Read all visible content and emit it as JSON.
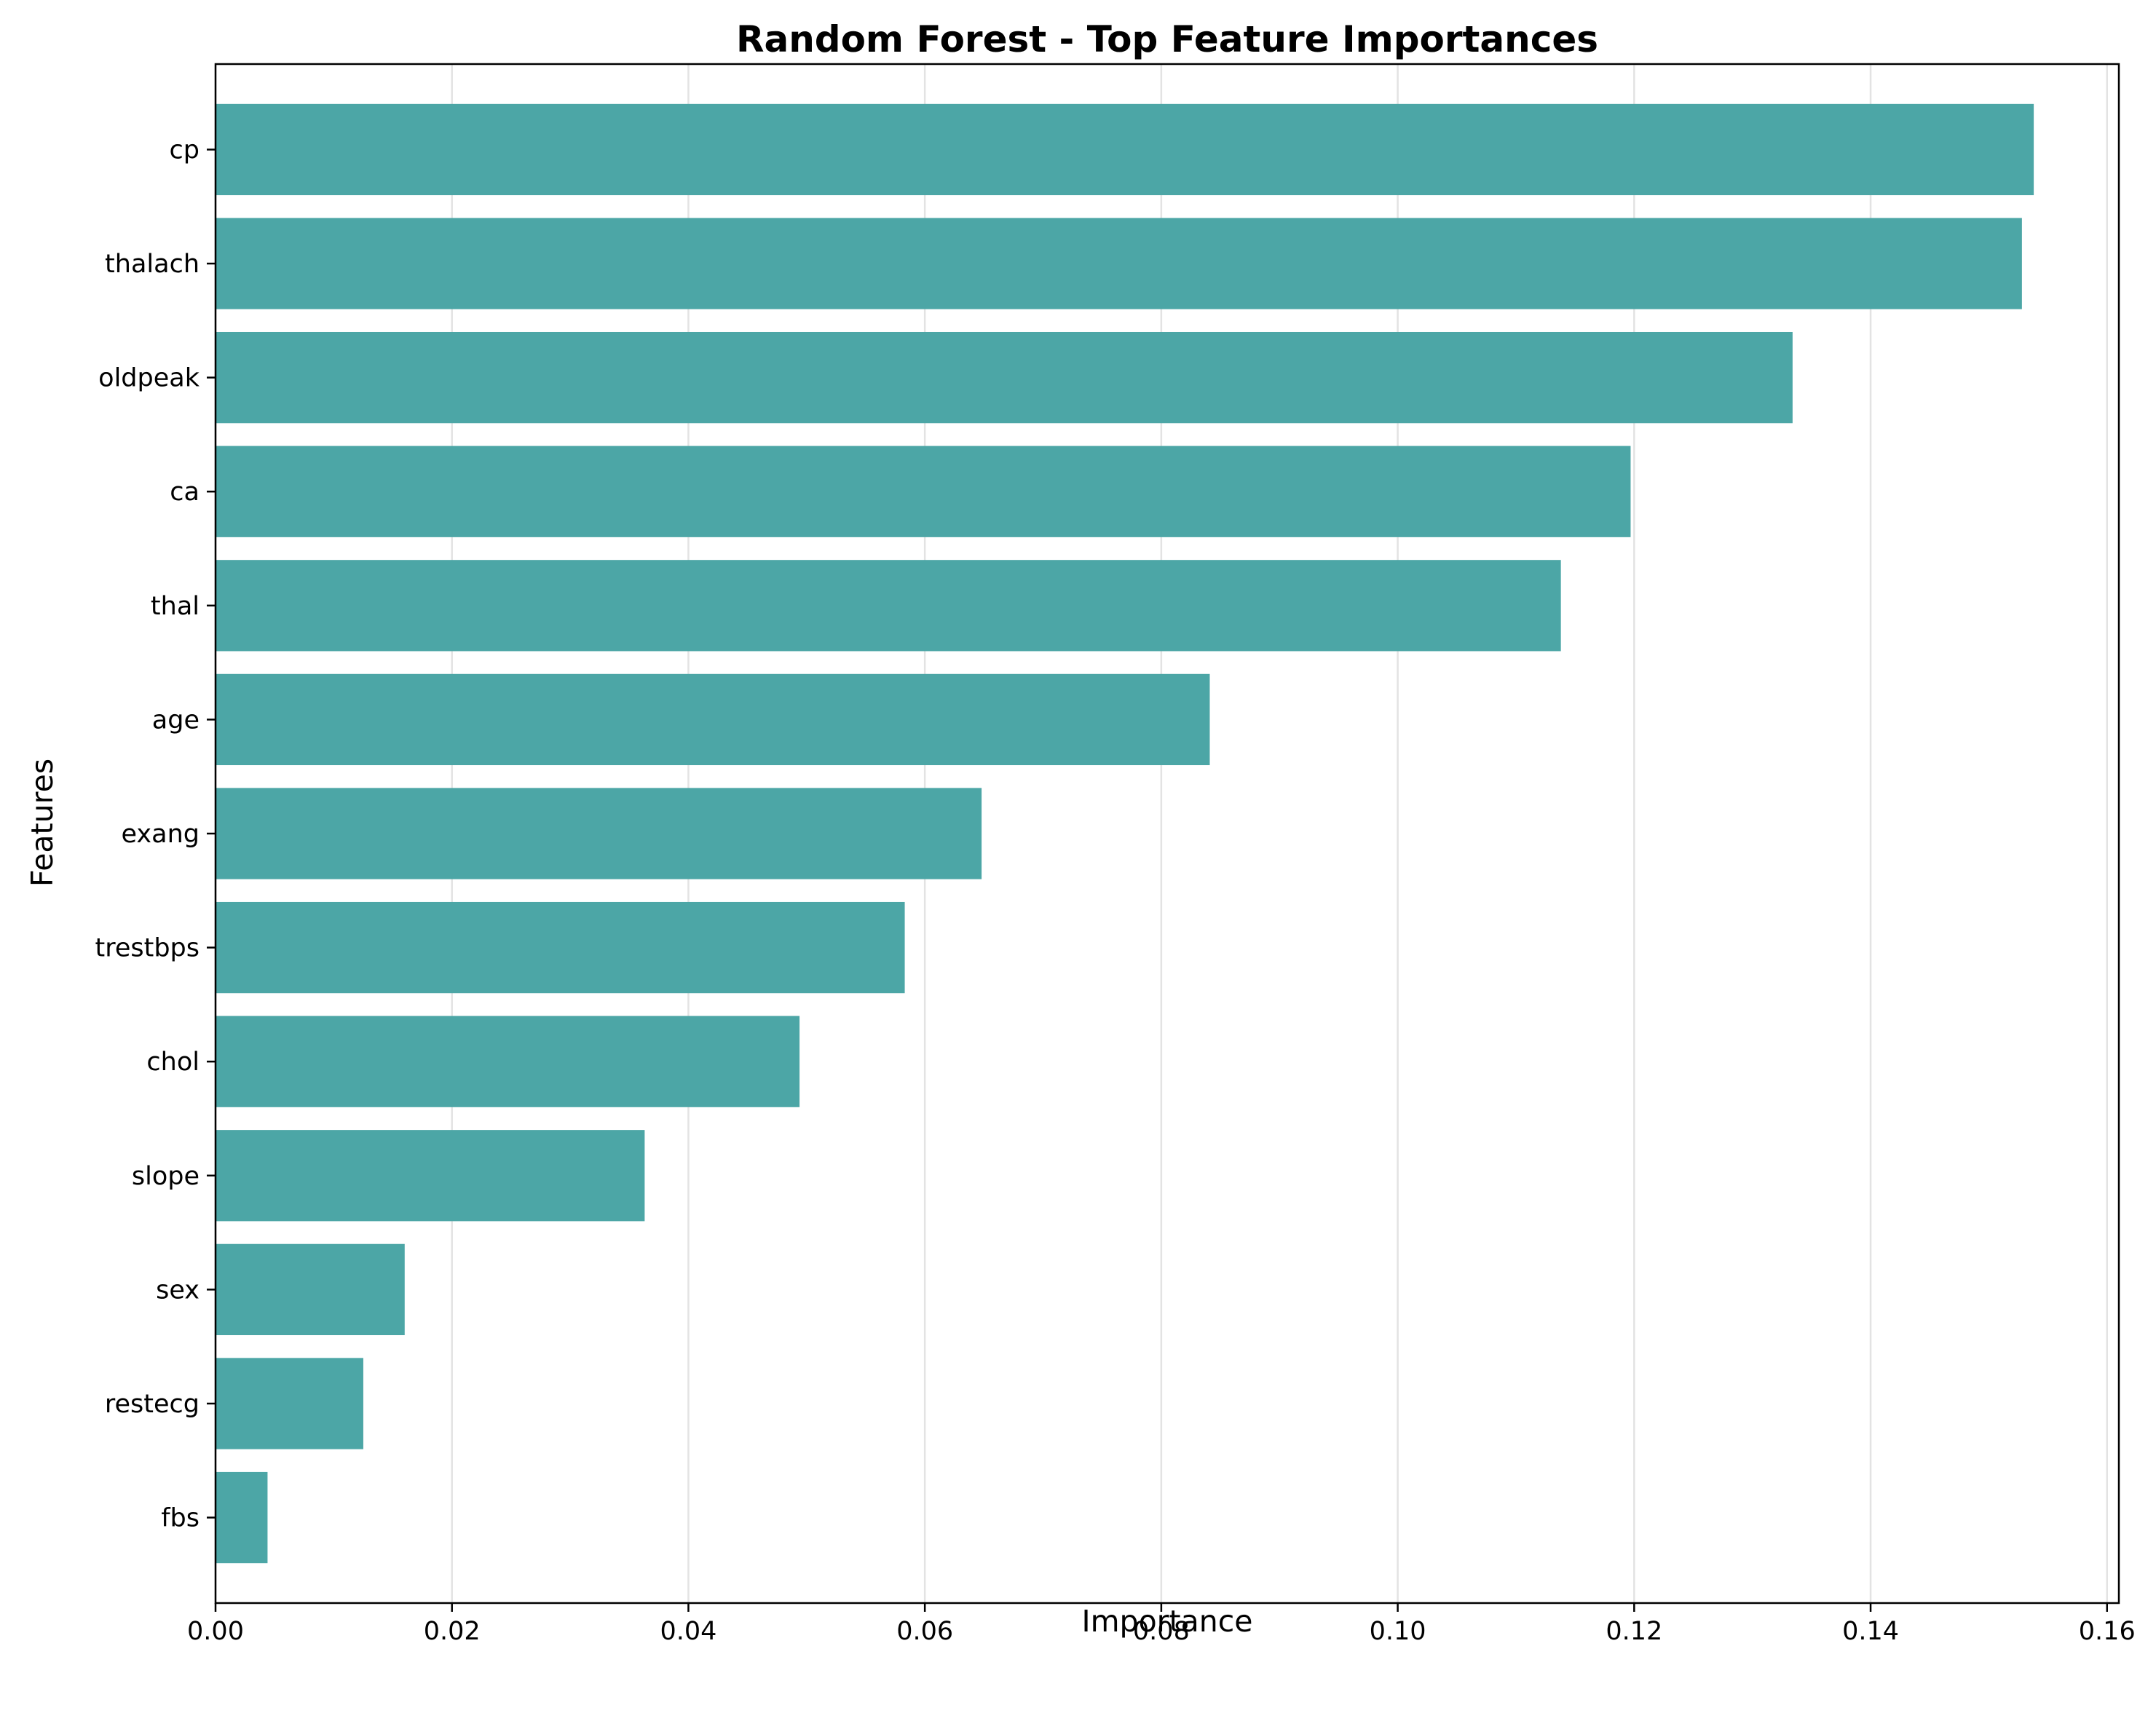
{
  "chart_data": {
    "type": "bar",
    "orientation": "horizontal",
    "title": "Random Forest - Top Feature Importances",
    "xlabel": "Importance",
    "ylabel": "Features",
    "categories": [
      "cp",
      "thalach",
      "oldpeak",
      "ca",
      "thal",
      "age",
      "exang",
      "trestbps",
      "chol",
      "slope",
      "sex",
      "restecg",
      "fbs"
    ],
    "values": [
      0.1538,
      0.1528,
      0.1334,
      0.1197,
      0.1138,
      0.0841,
      0.0648,
      0.0583,
      0.0494,
      0.0363,
      0.016,
      0.0125,
      0.0044
    ],
    "xlim": [
      0.0,
      0.161
    ],
    "xticks": [
      "0.00",
      "0.02",
      "0.04",
      "0.06",
      "0.08",
      "0.10",
      "0.12",
      "0.14",
      "0.16"
    ],
    "grid": "x",
    "bar_color": "#4ca6a6",
    "grid_color": "#e3e3e3"
  }
}
